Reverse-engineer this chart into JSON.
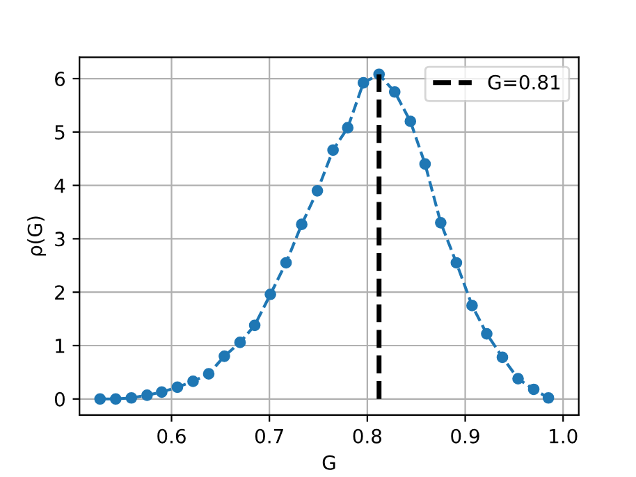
{
  "chart_data": {
    "type": "line",
    "xlabel": "G",
    "ylabel": "ρ(G)",
    "x": [
      0.527,
      0.543,
      0.559,
      0.575,
      0.59,
      0.606,
      0.622,
      0.638,
      0.654,
      0.67,
      0.685,
      0.701,
      0.717,
      0.733,
      0.749,
      0.765,
      0.78,
      0.796,
      0.812,
      0.828,
      0.844,
      0.859,
      0.875,
      0.891,
      0.907,
      0.922,
      0.938,
      0.954,
      0.97,
      0.985
    ],
    "series": [
      {
        "color": "#1f77b4",
        "values": [
          0.0,
          0.0,
          0.02,
          0.07,
          0.13,
          0.22,
          0.33,
          0.47,
          0.8,
          1.06,
          1.38,
          1.96,
          2.55,
          3.27,
          3.9,
          4.66,
          5.08,
          5.92,
          6.08,
          5.75,
          5.2,
          4.4,
          3.3,
          2.55,
          1.75,
          1.22,
          0.78,
          0.38,
          0.18,
          0.02
        ]
      }
    ],
    "marker": "circle",
    "line_style": "dashed",
    "ref_lines": [
      {
        "axis": "x",
        "value": 0.812,
        "label": "G=0.81",
        "color": "#000000",
        "line_style": "dashed"
      }
    ],
    "xlim": [
      0.506,
      1.016
    ],
    "ylim": [
      -0.3,
      6.4
    ],
    "xticks": [
      0.6,
      0.7,
      0.8,
      0.9,
      {
        "value": 1.0,
        "label": "1.0"
      }
    ],
    "yticks": [
      0,
      1,
      2,
      3,
      4,
      5,
      6
    ],
    "grid": true,
    "legend": "top right"
  }
}
